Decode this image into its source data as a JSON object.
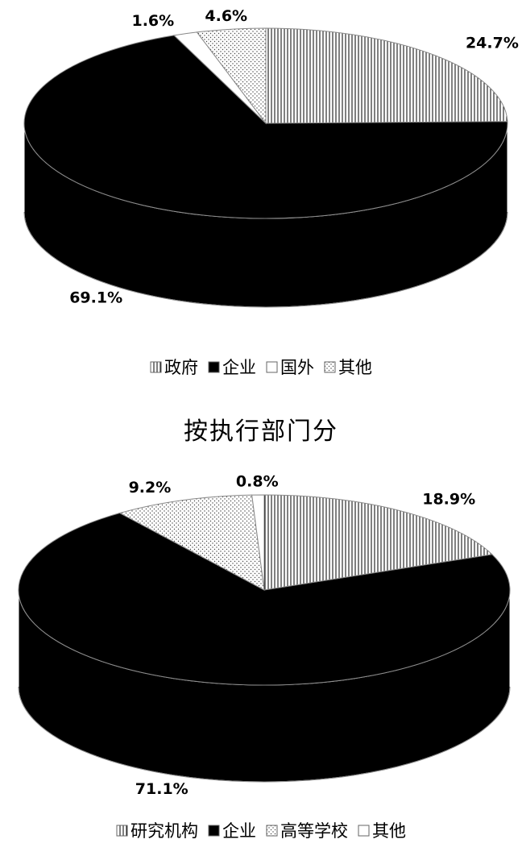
{
  "chart_data": [
    {
      "type": "pie",
      "title": "",
      "categories": [
        "政府",
        "企业",
        "国外",
        "其他"
      ],
      "values": [
        24.7,
        69.1,
        1.6,
        4.6
      ],
      "data_labels": [
        "24.7%",
        "69.1%",
        "1.6%",
        "4.6%"
      ],
      "patterns": [
        "vertical-lines",
        "solid-black",
        "white",
        "dots"
      ],
      "legend_position": "bottom",
      "style": "3d"
    },
    {
      "type": "pie",
      "title": "按执行部门分",
      "categories": [
        "研究机构",
        "企业",
        "高等学校",
        "其他"
      ],
      "values": [
        18.9,
        71.1,
        9.2,
        0.8
      ],
      "data_labels": [
        "18.9%",
        "71.1%",
        "9.2%",
        "0.8%"
      ],
      "patterns": [
        "vertical-lines",
        "solid-black",
        "dots",
        "white"
      ],
      "legend_position": "bottom",
      "style": "3d"
    }
  ]
}
